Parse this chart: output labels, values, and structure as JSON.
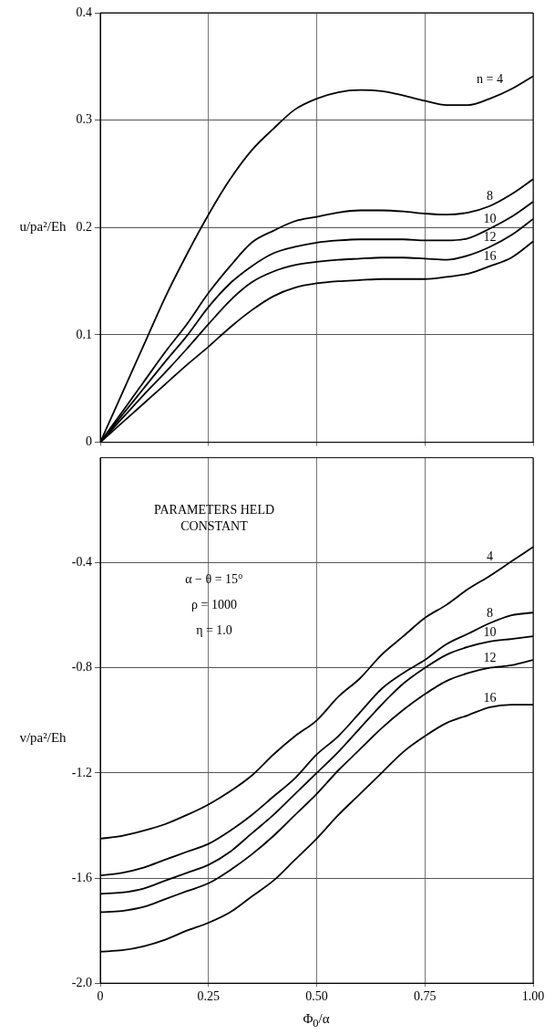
{
  "chart_data": [
    {
      "type": "line",
      "ylabel": "u/pa²/Eh",
      "x": [
        0,
        0.05,
        0.1,
        0.15,
        0.2,
        0.25,
        0.3,
        0.35,
        0.4,
        0.45,
        0.5,
        0.55,
        0.6,
        0.65,
        0.7,
        0.75,
        0.8,
        0.85,
        0.9,
        0.95,
        1.0
      ],
      "series": [
        {
          "name": "n = 4",
          "color": "#000000",
          "values": [
            0,
            0.045,
            0.09,
            0.135,
            0.175,
            0.212,
            0.245,
            0.272,
            0.292,
            0.31,
            0.32,
            0.326,
            0.328,
            0.327,
            0.323,
            0.318,
            0.314,
            0.314,
            0.32,
            0.329,
            0.341
          ]
        },
        {
          "name": "8",
          "color": "#000000",
          "values": [
            0,
            0.028,
            0.056,
            0.084,
            0.11,
            0.139,
            0.164,
            0.186,
            0.197,
            0.206,
            0.21,
            0.214,
            0.216,
            0.216,
            0.215,
            0.213,
            0.212,
            0.214,
            0.22,
            0.231,
            0.245
          ]
        },
        {
          "name": "10",
          "color": "#000000",
          "values": [
            0,
            0.025,
            0.05,
            0.075,
            0.099,
            0.126,
            0.148,
            0.164,
            0.176,
            0.182,
            0.186,
            0.188,
            0.189,
            0.189,
            0.189,
            0.188,
            0.188,
            0.19,
            0.199,
            0.21,
            0.224
          ]
        },
        {
          "name": "12",
          "color": "#000000",
          "values": [
            0,
            0.022,
            0.044,
            0.065,
            0.087,
            0.11,
            0.132,
            0.149,
            0.159,
            0.165,
            0.168,
            0.17,
            0.171,
            0.172,
            0.172,
            0.171,
            0.17,
            0.174,
            0.182,
            0.193,
            0.208
          ]
        },
        {
          "name": "16",
          "color": "#000000",
          "values": [
            0,
            0.018,
            0.036,
            0.054,
            0.072,
            0.089,
            0.107,
            0.123,
            0.136,
            0.144,
            0.148,
            0.15,
            0.151,
            0.152,
            0.152,
            0.152,
            0.154,
            0.157,
            0.164,
            0.172,
            0.187
          ]
        }
      ],
      "xlim": [
        0,
        1.0
      ],
      "xticks": [
        0,
        0.25,
        0.5,
        0.75,
        1.0
      ],
      "ylim": [
        0,
        0.4
      ],
      "yticks": [
        0,
        0.1,
        0.2,
        0.3,
        0.4
      ],
      "tick_labels": "y",
      "grid": true,
      "legend": false,
      "marker": "none",
      "line_style": "solid"
    },
    {
      "type": "line",
      "xlabel": "Φ$_{0}$/α",
      "ylabel": "v/pa²/Eh",
      "annotations": [
        "PARAMETERS HELD CONSTANT",
        "α − θ  =  15°",
        "ρ  =  1000",
        "η  =  1.0"
      ],
      "x": [
        0,
        0.05,
        0.1,
        0.15,
        0.2,
        0.25,
        0.3,
        0.35,
        0.4,
        0.45,
        0.5,
        0.55,
        0.6,
        0.65,
        0.7,
        0.75,
        0.8,
        0.85,
        0.9,
        0.95,
        1.0
      ],
      "series": [
        {
          "name": "4",
          "color": "#000000",
          "values": [
            -1.45,
            -1.44,
            -1.42,
            -1.395,
            -1.36,
            -1.32,
            -1.27,
            -1.21,
            -1.13,
            -1.06,
            -1.0,
            -0.91,
            -0.84,
            -0.75,
            -0.68,
            -0.61,
            -0.56,
            -0.5,
            -0.45,
            -0.395,
            -0.34
          ]
        },
        {
          "name": "8",
          "color": "#000000",
          "values": [
            -1.59,
            -1.58,
            -1.56,
            -1.53,
            -1.5,
            -1.47,
            -1.42,
            -1.36,
            -1.29,
            -1.22,
            -1.13,
            -1.06,
            -0.97,
            -0.88,
            -0.82,
            -0.77,
            -0.71,
            -0.67,
            -0.63,
            -0.6,
            -0.59
          ]
        },
        {
          "name": "10",
          "color": "#000000",
          "values": [
            -1.66,
            -1.655,
            -1.64,
            -1.61,
            -1.58,
            -1.55,
            -1.5,
            -1.43,
            -1.36,
            -1.28,
            -1.2,
            -1.12,
            -1.03,
            -0.94,
            -0.86,
            -0.8,
            -0.75,
            -0.72,
            -0.7,
            -0.69,
            -0.68
          ]
        },
        {
          "name": "12",
          "color": "#000000",
          "values": [
            -1.73,
            -1.725,
            -1.71,
            -1.68,
            -1.65,
            -1.62,
            -1.57,
            -1.51,
            -1.44,
            -1.36,
            -1.28,
            -1.19,
            -1.11,
            -1.03,
            -0.96,
            -0.9,
            -0.85,
            -0.82,
            -0.8,
            -0.79,
            -0.77
          ]
        },
        {
          "name": "16",
          "color": "#000000",
          "values": [
            -1.88,
            -1.875,
            -1.86,
            -1.835,
            -1.8,
            -1.77,
            -1.73,
            -1.67,
            -1.61,
            -1.53,
            -1.45,
            -1.36,
            -1.28,
            -1.2,
            -1.12,
            -1.06,
            -1.01,
            -0.98,
            -0.95,
            -0.94,
            -0.94
          ]
        }
      ],
      "xlim": [
        0,
        1.0
      ],
      "xticks": [
        0,
        0.25,
        {
          "value": 0.5,
          "label": "0.50"
        },
        0.75,
        {
          "value": 1.0,
          "label": "1.00"
        }
      ],
      "ylim": [
        -2.0,
        0
      ],
      "yticks": [
        -0.4,
        -0.8,
        -1.2,
        -1.6,
        {
          "value": -2.0,
          "label": "-2.0"
        }
      ],
      "grid": true,
      "legend": false,
      "marker": "none",
      "line_style": "solid"
    }
  ]
}
